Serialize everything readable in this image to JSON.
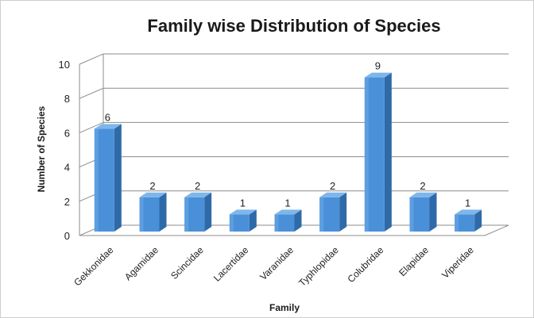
{
  "chart_data": {
    "type": "bar",
    "title": "Family wise Distribution of Species",
    "xlabel": "Family",
    "ylabel": "Number of Species",
    "categories": [
      "Gekkonidae",
      "Agamidae",
      "Scincidae",
      "Lacertidae",
      "Varanidae",
      "Typhlopidae",
      "Colubridae",
      "Elapidae",
      "Viperidae"
    ],
    "values": [
      6,
      2,
      2,
      1,
      1,
      2,
      9,
      2,
      1
    ],
    "ylim": [
      0,
      10
    ],
    "yticks": [
      0,
      2,
      4,
      6,
      8,
      10
    ],
    "grid": true,
    "legend": "none",
    "style": "3d-bar",
    "colors": {
      "bar_front": "#4a90d9",
      "bar_side": "#2f6aa8",
      "bar_top": "#7fb6ea",
      "grid": "#8c8c8c"
    }
  }
}
